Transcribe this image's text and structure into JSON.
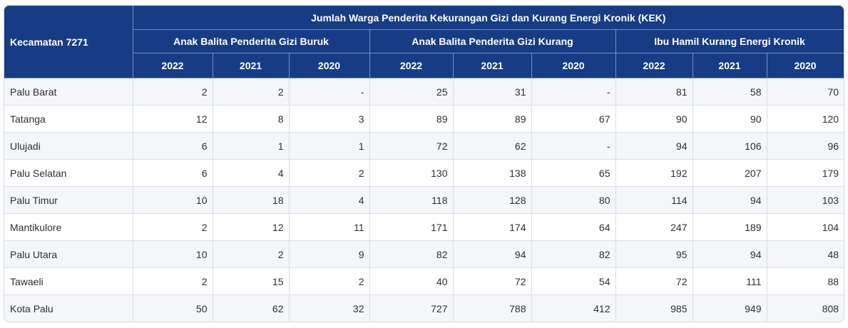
{
  "header": {
    "corner": "Kecamatan 7271",
    "title": "Jumlah Warga Penderita Kekurangan Gizi dan Kurang Energi Kronik (KEK)",
    "groups": [
      "Anak Balita Penderita Gizi Buruk",
      "Anak Balita Penderita Gizi Kurang",
      "Ibu Hamil Kurang Energi Kronik"
    ],
    "years": [
      "2022",
      "2021",
      "2020",
      "2022",
      "2021",
      "2020",
      "2022",
      "2021",
      "2020"
    ]
  },
  "rows": [
    {
      "name": "Palu Barat",
      "values": [
        "2",
        "2",
        "-",
        "25",
        "31",
        "-",
        "81",
        "58",
        "70"
      ]
    },
    {
      "name": "Tatanga",
      "values": [
        "12",
        "8",
        "3",
        "89",
        "89",
        "67",
        "90",
        "90",
        "120"
      ]
    },
    {
      "name": "Ulujadi",
      "values": [
        "6",
        "1",
        "1",
        "72",
        "62",
        "-",
        "94",
        "106",
        "96"
      ]
    },
    {
      "name": "Palu Selatan",
      "values": [
        "6",
        "4",
        "2",
        "130",
        "138",
        "65",
        "192",
        "207",
        "179"
      ]
    },
    {
      "name": "Palu Timur",
      "values": [
        "10",
        "18",
        "4",
        "118",
        "128",
        "80",
        "114",
        "94",
        "103"
      ]
    },
    {
      "name": "Mantikulore",
      "values": [
        "2",
        "12",
        "11",
        "171",
        "174",
        "64",
        "247",
        "189",
        "104"
      ]
    },
    {
      "name": "Palu Utara",
      "values": [
        "10",
        "2",
        "9",
        "82",
        "94",
        "82",
        "95",
        "94",
        "48"
      ]
    },
    {
      "name": "Tawaeli",
      "values": [
        "2",
        "15",
        "2",
        "40",
        "72",
        "54",
        "72",
        "111",
        "88"
      ]
    },
    {
      "name": "Kota Palu",
      "values": [
        "50",
        "62",
        "32",
        "727",
        "788",
        "412",
        "985",
        "949",
        "808"
      ]
    }
  ]
}
